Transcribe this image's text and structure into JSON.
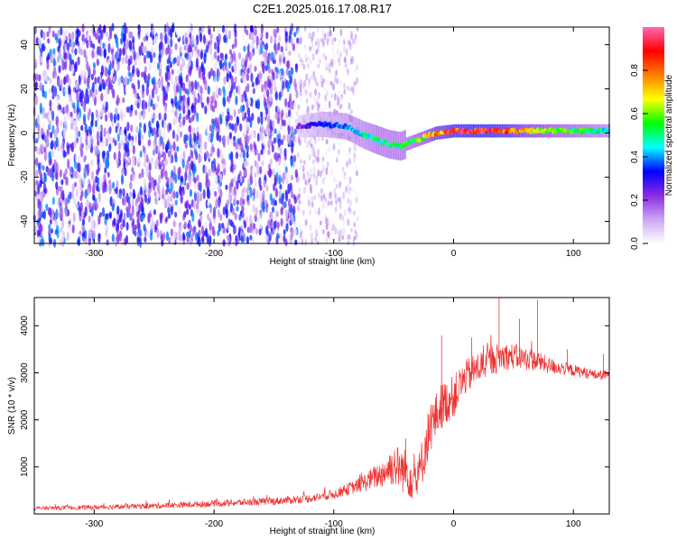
{
  "figure": {
    "title": "C2E1.2025.016.17.08.R17"
  },
  "chart_data": [
    {
      "type": "heatmap",
      "xlabel": "Height of straight line (km)",
      "ylabel": "Frequency (Hz)",
      "xlim": [
        -350,
        130
      ],
      "ylim": [
        -50,
        48
      ],
      "xticks": [
        -300,
        -200,
        -100,
        0,
        100
      ],
      "yticks": [
        -40,
        -20,
        0,
        20,
        40
      ],
      "grid": false,
      "colorbar": {
        "label": "Normalized spectral amplitude",
        "range": [
          0,
          1
        ],
        "ticks": [
          "0.0",
          "0.2",
          "0.4",
          "0.6",
          "0.8"
        ],
        "colormap": [
          "#ffffff",
          "#c9a6f2",
          "#8a2be2",
          "#0000ff",
          "#00ffff",
          "#00ff00",
          "#ffff00",
          "#ff7f00",
          "#ff0000",
          "#ff69b4"
        ]
      },
      "noise_region": {
        "x_from": -350,
        "x_to": -130,
        "level": 0.25
      },
      "fade_region": {
        "x_from": -130,
        "x_to": -80,
        "level": 0.12
      },
      "track": {
        "x": [
          -130,
          -110,
          -90,
          -75,
          -65,
          -55,
          -45,
          -35,
          -25,
          -15,
          0,
          20,
          40,
          60,
          80,
          100,
          130
        ],
        "freq": [
          3,
          4,
          3,
          -1,
          -3,
          -5,
          -6,
          -4,
          -2,
          0,
          1,
          1,
          1,
          1,
          1,
          1,
          1
        ],
        "amplitude": [
          0.2,
          0.35,
          0.4,
          0.45,
          0.5,
          0.5,
          0.5,
          0.55,
          0.6,
          0.75,
          0.85,
          0.9,
          0.85,
          0.7,
          0.6,
          0.55,
          0.45
        ]
      }
    },
    {
      "type": "line",
      "xlabel": "Height of straight line (km)",
      "ylabel": "SNR (10 * v/v)",
      "xlim": [
        -350,
        130
      ],
      "ylim": [
        0,
        4600
      ],
      "xticks": [
        -300,
        -200,
        -100,
        0,
        100
      ],
      "yticks": [
        1000,
        2000,
        3000,
        4000
      ],
      "grid": false,
      "color": "#ee3333",
      "series": [
        {
          "x": [
            -350,
            -300,
            -250,
            -200,
            -150,
            -120,
            -100,
            -80,
            -60,
            -50,
            -40,
            -30,
            -20,
            -10,
            0,
            10,
            20,
            30,
            40,
            50,
            60,
            70,
            80,
            90,
            100,
            110,
            120,
            130
          ],
          "y": [
            120,
            140,
            170,
            220,
            270,
            330,
            420,
            600,
            850,
            1050,
            900,
            700,
            1800,
            2300,
            2500,
            2900,
            3100,
            3250,
            3350,
            3350,
            3300,
            3250,
            3150,
            3100,
            3050,
            3000,
            2950,
            2950
          ],
          "noise": [
            40,
            50,
            60,
            70,
            80,
            90,
            100,
            150,
            300,
            450,
            500,
            500,
            550,
            500,
            450,
            380,
            350,
            330,
            300,
            280,
            250,
            220,
            180,
            150,
            130,
            120,
            110,
            110
          ],
          "peaks": [
            [
              -40,
              1600
            ],
            [
              -10,
              3800
            ],
            [
              15,
              3750
            ],
            [
              38,
              4650
            ],
            [
              55,
              4150
            ],
            [
              70,
              4550
            ],
            [
              95,
              3500
            ],
            [
              125,
              3400
            ]
          ]
        }
      ]
    }
  ]
}
